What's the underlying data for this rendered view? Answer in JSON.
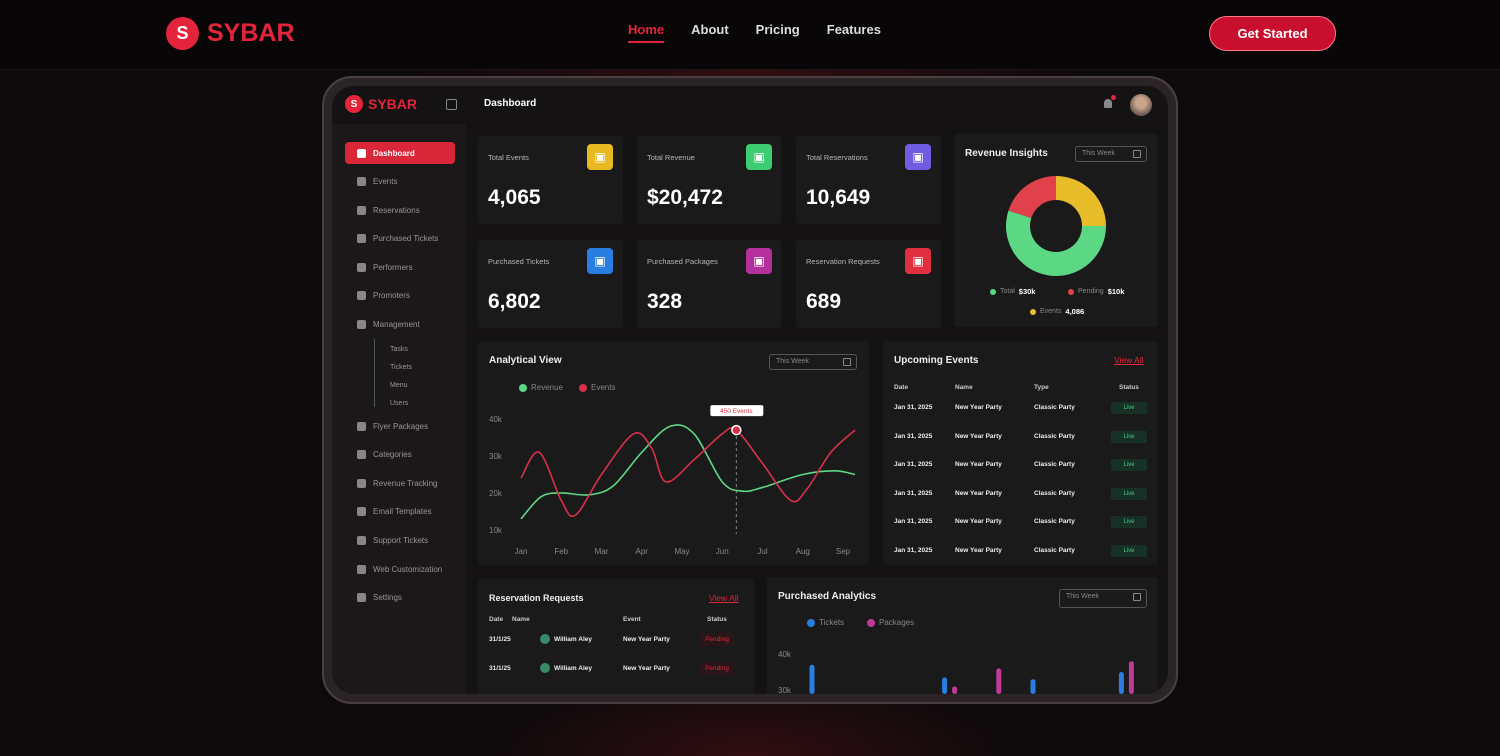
{
  "brand": "SYBAR",
  "nav": {
    "links": [
      "Home",
      "About",
      "Pricing",
      "Features"
    ],
    "active": "Home",
    "cta": "Get Started"
  },
  "app": {
    "page_title": "Dashboard"
  },
  "sidebar": {
    "items": [
      "Dashboard",
      "Events",
      "Reservations",
      "Purchased Tickets",
      "Performers",
      "Promoters",
      "Management"
    ],
    "sub_items": [
      "Tasks",
      "Tickets",
      "Menu",
      "Users"
    ],
    "items2": [
      "Flyer Packages",
      "Categories",
      "Revenue Tracking",
      "Email Templates",
      "Support Tickets",
      "Web Customization",
      "Settings"
    ]
  },
  "stats": [
    {
      "label": "Total Events",
      "value": "4,065",
      "color": "#e8b923",
      "icon": "calendar-icon"
    },
    {
      "label": "Total Revenue",
      "value": "$20,472",
      "color": "#3dcc72",
      "icon": "money-bag-icon"
    },
    {
      "label": "Total Reservations",
      "value": "10,649",
      "color": "#6f5ce0",
      "icon": "clipboard-icon"
    },
    {
      "label": "Purchased Tickets",
      "value": "6,802",
      "color": "#2a7de1",
      "icon": "ticket-icon"
    },
    {
      "label": "Purchased Packages",
      "value": "328",
      "color": "#b3309a",
      "icon": "package-icon"
    },
    {
      "label": "Reservation Requests",
      "value": "689",
      "color": "#e03040",
      "icon": "box-icon"
    }
  ],
  "period": "This Week",
  "view_all": "View All",
  "revenue_insights": {
    "title": "Revenue Insights",
    "slices": [
      {
        "name": "Total",
        "value": "$30k",
        "share": 0.55,
        "color": "#5cd884"
      },
      {
        "name": "Pending",
        "value": "$10k",
        "share": 0.2,
        "color": "#e0414a"
      },
      {
        "name": "Events",
        "value": "4,086",
        "share": 0.25,
        "color": "#e8bd2a"
      }
    ]
  },
  "chart_data": [
    {
      "type": "line",
      "title": "Analytical View",
      "categories": [
        "Jan",
        "Feb",
        "Mar",
        "Apr",
        "May",
        "Jun",
        "Jul",
        "Aug",
        "Sep"
      ],
      "yticks": [
        "10k",
        "20k",
        "30k",
        "40k"
      ],
      "ylim": [
        10,
        40
      ],
      "series": [
        {
          "name": "Revenue",
          "color": "#5cd884",
          "points": [
            [
              0,
              13
            ],
            [
              0.5,
              19
            ],
            [
              1,
              20
            ],
            [
              1.7,
              19.5
            ],
            [
              2.3,
              22
            ],
            [
              3,
              31
            ],
            [
              3.7,
              38
            ],
            [
              4.3,
              36
            ],
            [
              5,
              23
            ],
            [
              5.5,
              20.5
            ],
            [
              6,
              21.5
            ],
            [
              7,
              25
            ],
            [
              7.8,
              26
            ],
            [
              8.3,
              25
            ]
          ]
        },
        {
          "name": "Events",
          "color": "#d9304a",
          "points": [
            [
              0,
              24
            ],
            [
              0.45,
              31
            ],
            [
              1,
              18
            ],
            [
              1.35,
              14
            ],
            [
              2,
              25
            ],
            [
              2.8,
              36
            ],
            [
              3.25,
              32
            ],
            [
              3.6,
              23
            ],
            [
              4.3,
              29
            ],
            [
              5,
              36
            ],
            [
              5.35,
              37
            ],
            [
              6,
              28
            ],
            [
              6.7,
              18
            ],
            [
              7.1,
              21
            ],
            [
              7.7,
              31
            ],
            [
              8.3,
              37
            ]
          ]
        }
      ],
      "annotation": {
        "label": "450 Events",
        "x": 5.35,
        "y": 37
      }
    },
    {
      "type": "bar",
      "title": "Purchased Analytics",
      "yticks": [
        "30k",
        "40k"
      ],
      "ylim": [
        20,
        45
      ],
      "series": [
        {
          "name": "Tickets",
          "color": "#2a7de1",
          "values": [
            37,
            null,
            null,
            33.5,
            null,
            33,
            null,
            35
          ]
        },
        {
          "name": "Packages",
          "color": "#c03a9a",
          "values": [
            null,
            null,
            null,
            31,
            36,
            null,
            null,
            38
          ]
        }
      ]
    }
  ],
  "upcoming": {
    "title": "Upcoming Events",
    "headers": [
      "Date",
      "Name",
      "Type",
      "Status"
    ],
    "rows": [
      [
        "Jan 31, 2025",
        "New Year Party",
        "Classic Party",
        "Live"
      ],
      [
        "Jan 31, 2025",
        "New Year Party",
        "Classic Party",
        "Live"
      ],
      [
        "Jan 31, 2025",
        "New Year Party",
        "Classic Party",
        "Live"
      ],
      [
        "Jan 31, 2025",
        "New Year Party",
        "Classic Party",
        "Live"
      ],
      [
        "Jan 31, 2025",
        "New Year Party",
        "Classic Party",
        "Live"
      ],
      [
        "Jan 31, 2025",
        "New Year Party",
        "Classic Party",
        "Live"
      ]
    ]
  },
  "reservations": {
    "title": "Reservation Requests",
    "headers": [
      "Date",
      "Name",
      "Event",
      "Status"
    ],
    "rows": [
      [
        "31/1/25",
        "William Aley",
        "New Year Party",
        "Pending"
      ],
      [
        "31/1/25",
        "William Aley",
        "New Year Party",
        "Pending"
      ]
    ]
  }
}
